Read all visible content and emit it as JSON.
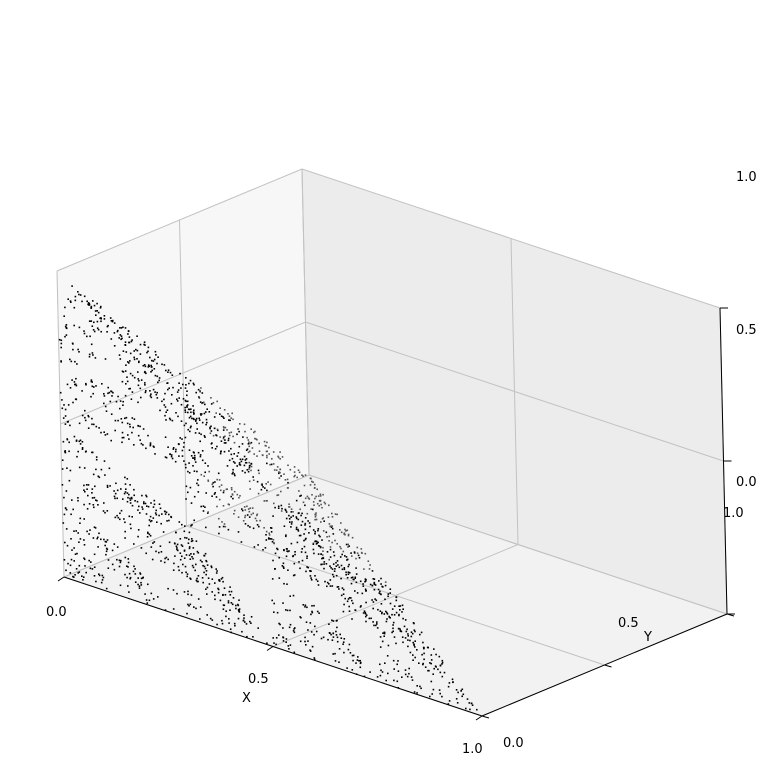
{
  "chart_data": {
    "type": "scatter",
    "projection": "3d",
    "title": "",
    "xlabel": "X",
    "ylabel": "Y",
    "zlabel": "",
    "xlim": [
      0,
      1
    ],
    "ylim": [
      0,
      1
    ],
    "zlim": [
      0,
      1
    ],
    "x_ticks": [
      0.0,
      0.5,
      1.0
    ],
    "y_ticks": [
      0.0,
      0.5,
      1.0
    ],
    "z_ticks": [
      0.0,
      0.5,
      1.0
    ],
    "x_tick_labels": [
      "0.0",
      "0.5",
      "1.0"
    ],
    "y_tick_labels": [
      "0.0",
      "0.5",
      "1.0"
    ],
    "z_tick_labels": [
      "0.0",
      "0.5",
      "1.0"
    ],
    "grid": true,
    "marker_color": "#000000",
    "series": [
      {
        "description": "points of a Sierpinski tetrahedron",
        "generator": "chaos-game",
        "vertices": [
          [
            0,
            0,
            0
          ],
          [
            1,
            0,
            0
          ],
          [
            0,
            1,
            0
          ],
          [
            0,
            0,
            1
          ]
        ],
        "point_count": 2000
      }
    ]
  }
}
